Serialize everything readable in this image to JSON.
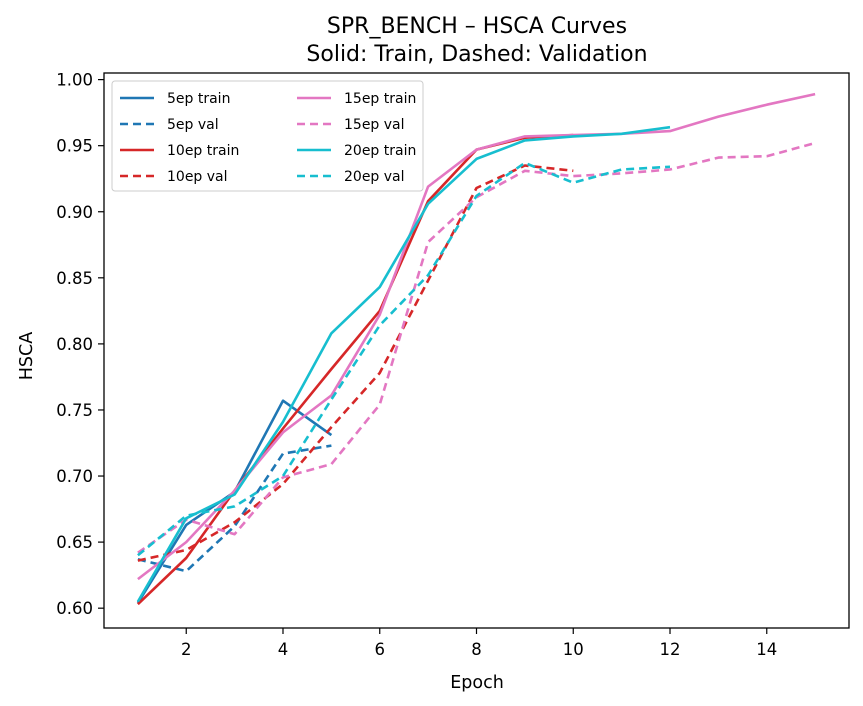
{
  "chart_data": {
    "type": "line",
    "title": "SPR_BENCH – HSCA Curves",
    "subtitle": "Solid: Train, Dashed: Validation",
    "xlabel": "Epoch",
    "ylabel": "HSCA",
    "xlim": [
      0.3,
      15.7
    ],
    "ylim": [
      0.585,
      1.005
    ],
    "xticks": [
      2,
      4,
      6,
      8,
      10,
      12,
      14
    ],
    "yticks": [
      0.6,
      0.65,
      0.7,
      0.75,
      0.8,
      0.85,
      0.9,
      0.95,
      1.0
    ],
    "grid": false,
    "legend": {
      "position": "top-left",
      "columns": 2
    },
    "series": [
      {
        "name": "5ep train",
        "color": "#1f77b4",
        "style": "solid",
        "x": [
          1,
          2,
          3,
          4,
          5
        ],
        "y": [
          0.604,
          0.663,
          0.688,
          0.757,
          0.731
        ]
      },
      {
        "name": "5ep val",
        "color": "#1f77b4",
        "style": "dashed",
        "x": [
          1,
          2,
          3,
          4,
          5
        ],
        "y": [
          0.637,
          0.628,
          0.662,
          0.717,
          0.723
        ]
      },
      {
        "name": "10ep train",
        "color": "#d62728",
        "style": "solid",
        "x": [
          1,
          2,
          3,
          4,
          5,
          6,
          7,
          8,
          9,
          10
        ],
        "y": [
          0.603,
          0.638,
          0.689,
          0.736,
          0.781,
          0.825,
          0.908,
          0.947,
          0.956,
          0.958
        ]
      },
      {
        "name": "10ep val",
        "color": "#d62728",
        "style": "dashed",
        "x": [
          1,
          2,
          3,
          4,
          5,
          6,
          7,
          8,
          9,
          10
        ],
        "y": [
          0.636,
          0.644,
          0.665,
          0.694,
          0.737,
          0.778,
          0.848,
          0.918,
          0.935,
          0.931
        ]
      },
      {
        "name": "15ep train",
        "color": "#e377c2",
        "style": "solid",
        "x": [
          1,
          2,
          3,
          4,
          5,
          6,
          7,
          8,
          9,
          10,
          11,
          12,
          13,
          14,
          15
        ],
        "y": [
          0.622,
          0.65,
          0.689,
          0.733,
          0.761,
          0.822,
          0.919,
          0.947,
          0.957,
          0.958,
          0.959,
          0.961,
          0.972,
          0.981,
          0.989
        ]
      },
      {
        "name": "15ep val",
        "color": "#e377c2",
        "style": "dashed",
        "x": [
          1,
          2,
          3,
          4,
          5,
          6,
          7,
          8,
          9,
          10,
          11,
          12,
          13,
          14,
          15
        ],
        "y": [
          0.642,
          0.667,
          0.656,
          0.699,
          0.709,
          0.754,
          0.877,
          0.911,
          0.931,
          0.927,
          0.929,
          0.932,
          0.941,
          0.942,
          0.952
        ]
      },
      {
        "name": "20ep train",
        "color": "#17becf",
        "style": "solid",
        "x": [
          1,
          2,
          3,
          4,
          5,
          6,
          7,
          8,
          9,
          10,
          11,
          12
        ],
        "y": [
          0.605,
          0.668,
          0.686,
          0.741,
          0.808,
          0.843,
          0.906,
          0.94,
          0.954,
          0.957,
          0.959,
          0.964
        ]
      },
      {
        "name": "20ep val",
        "color": "#17becf",
        "style": "dashed",
        "x": [
          1,
          2,
          3,
          4,
          5,
          6,
          7,
          8,
          9,
          10,
          11,
          12
        ],
        "y": [
          0.64,
          0.67,
          0.677,
          0.7,
          0.758,
          0.814,
          0.852,
          0.912,
          0.937,
          0.922,
          0.932,
          0.934
        ]
      }
    ]
  }
}
